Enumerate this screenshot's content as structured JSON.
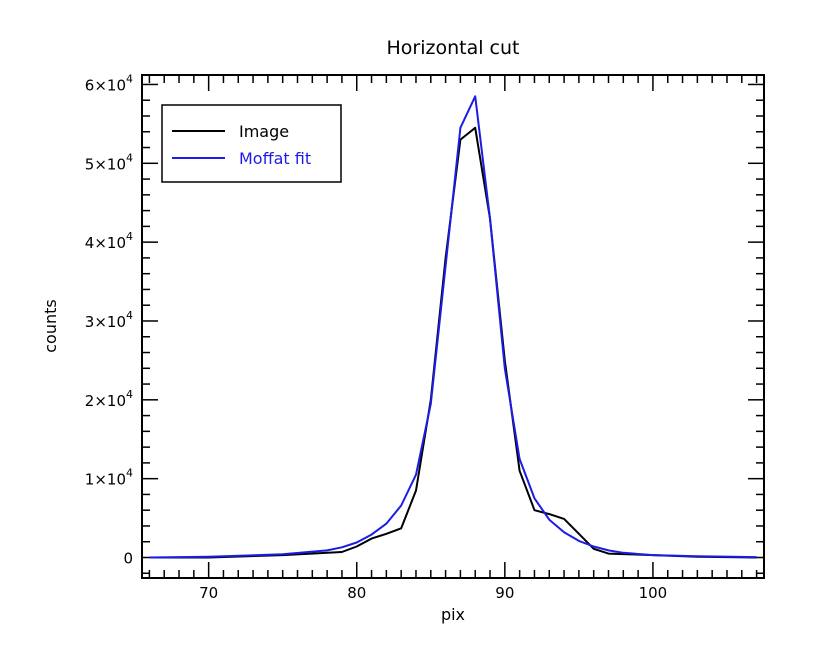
{
  "chart_data": {
    "type": "line",
    "title": "Horizontal cut",
    "xlabel": "pix",
    "ylabel": "counts",
    "xlim": [
      65.5,
      107.5
    ],
    "ylim": [
      -2600,
      61200
    ],
    "x_ticks": [
      70,
      80,
      90,
      100
    ],
    "x_tick_labels": [
      "70",
      "80",
      "90",
      "100"
    ],
    "y_ticks": [
      0,
      10000,
      20000,
      30000,
      40000,
      50000,
      60000
    ],
    "y_tick_labels": [
      {
        "mantissa": "0",
        "exponent": ""
      },
      {
        "mantissa": "1×10",
        "exponent": "4"
      },
      {
        "mantissa": "2×10",
        "exponent": "4"
      },
      {
        "mantissa": "3×10",
        "exponent": "4"
      },
      {
        "mantissa": "4×10",
        "exponent": "4"
      },
      {
        "mantissa": "5×10",
        "exponent": "4"
      },
      {
        "mantissa": "6×10",
        "exponent": "4"
      }
    ],
    "legend_position": "top-left",
    "series": [
      {
        "name": "Image",
        "color": "#000000",
        "x": [
          66,
          70,
          75,
          79,
          80,
          81,
          82,
          83,
          84,
          85,
          86,
          87,
          88,
          89,
          90,
          91,
          92,
          93,
          94,
          95,
          96,
          97,
          100,
          103,
          107
        ],
        "y": [
          0,
          0,
          300,
          700,
          1400,
          2400,
          3000,
          3700,
          8500,
          20000,
          38000,
          53000,
          54500,
          43000,
          25000,
          11000,
          6000,
          5500,
          4900,
          3000,
          1100,
          500,
          300,
          100,
          0
        ]
      },
      {
        "name": "Moffat fit",
        "color": "#1c1ce6",
        "x": [
          66,
          70,
          75,
          78,
          79,
          80,
          81,
          82,
          83,
          84,
          85,
          86,
          87,
          88,
          89,
          90,
          91,
          92,
          93,
          94,
          95,
          96,
          97,
          98,
          100,
          103,
          107
        ],
        "y": [
          0,
          100,
          400,
          900,
          1300,
          1900,
          2900,
          4300,
          6600,
          10500,
          19500,
          37000,
          54500,
          58500,
          43000,
          24000,
          12500,
          7500,
          4800,
          3200,
          2100,
          1400,
          900,
          600,
          300,
          150,
          50
        ]
      }
    ]
  }
}
